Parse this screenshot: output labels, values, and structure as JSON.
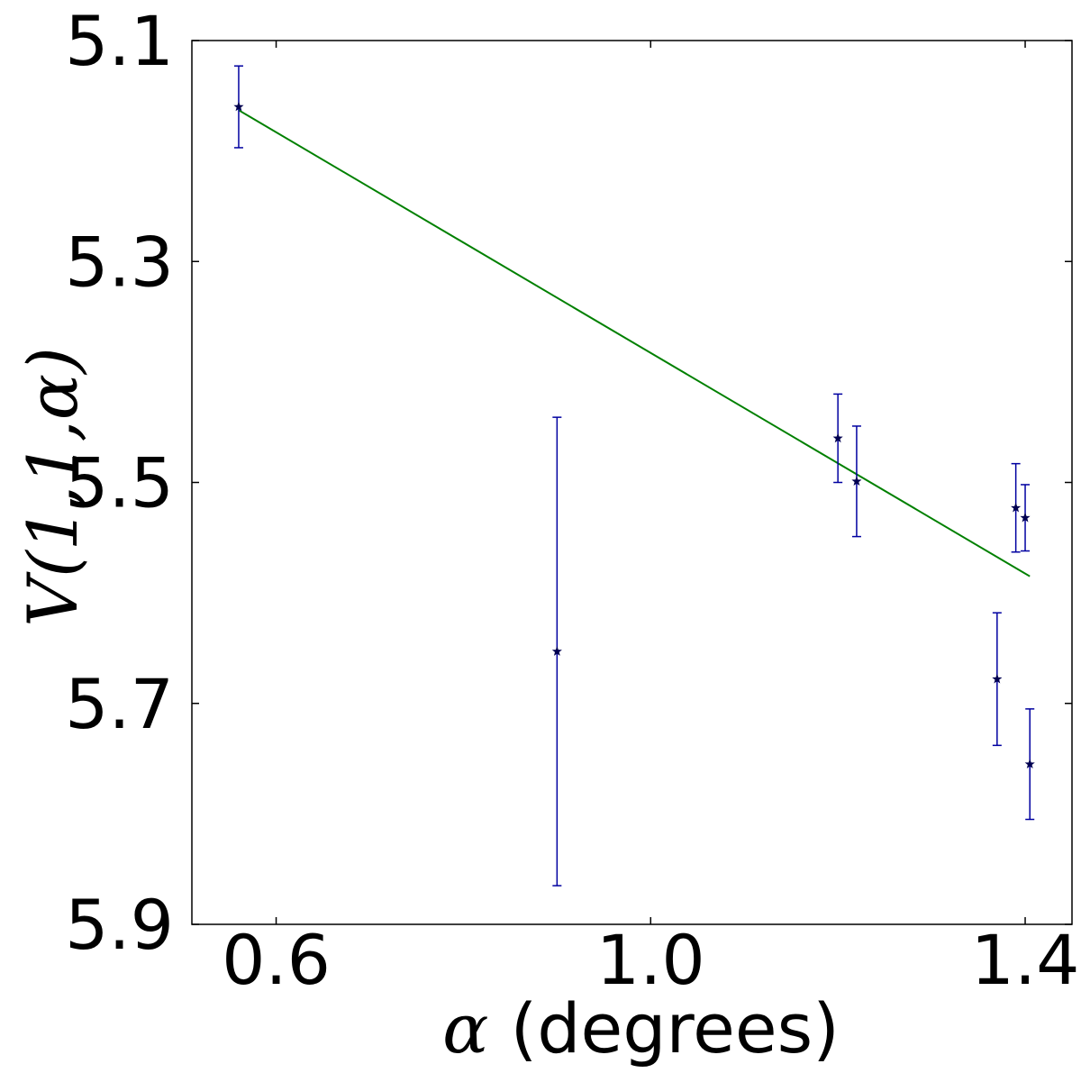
{
  "chart_data": {
    "type": "scatter",
    "xlabel_symbol": "α",
    "xlabel_text": "(degrees)",
    "ylabel": "V(1,1,α)",
    "xlim": [
      0.51,
      1.45
    ],
    "ylim": [
      5.9,
      5.1
    ],
    "y_inverted": true,
    "x_ticks": [
      0.6,
      1.0,
      1.4
    ],
    "x_tick_labels": [
      "0.6",
      "1.0",
      "1.4"
    ],
    "y_ticks": [
      5.1,
      5.3,
      5.5,
      5.7,
      5.9
    ],
    "y_tick_labels": [
      "5.1",
      "5.3",
      "5.5",
      "5.7",
      "5.9"
    ],
    "grid": false,
    "series": [
      {
        "style": "points-with-error-bars",
        "marker": "star",
        "color": "#0000a0",
        "points": [
          {
            "x": 0.56,
            "y": 5.16,
            "yerr": 0.037
          },
          {
            "x": 0.9,
            "y": 5.653,
            "yerr": 0.212
          },
          {
            "x": 1.2,
            "y": 5.46,
            "yerr": 0.04
          },
          {
            "x": 1.22,
            "y": 5.499,
            "yerr": 0.05
          },
          {
            "x": 1.37,
            "y": 5.678,
            "yerr": 0.06
          },
          {
            "x": 1.39,
            "y": 5.523,
            "yerr": 0.04
          },
          {
            "x": 1.4,
            "y": 5.532,
            "yerr": 0.03
          },
          {
            "x": 1.405,
            "y": 5.755,
            "yerr": 0.05
          }
        ]
      },
      {
        "style": "line",
        "color": "#008000",
        "x": [
          0.56,
          1.405
        ],
        "y": [
          5.163,
          5.585
        ]
      }
    ]
  }
}
